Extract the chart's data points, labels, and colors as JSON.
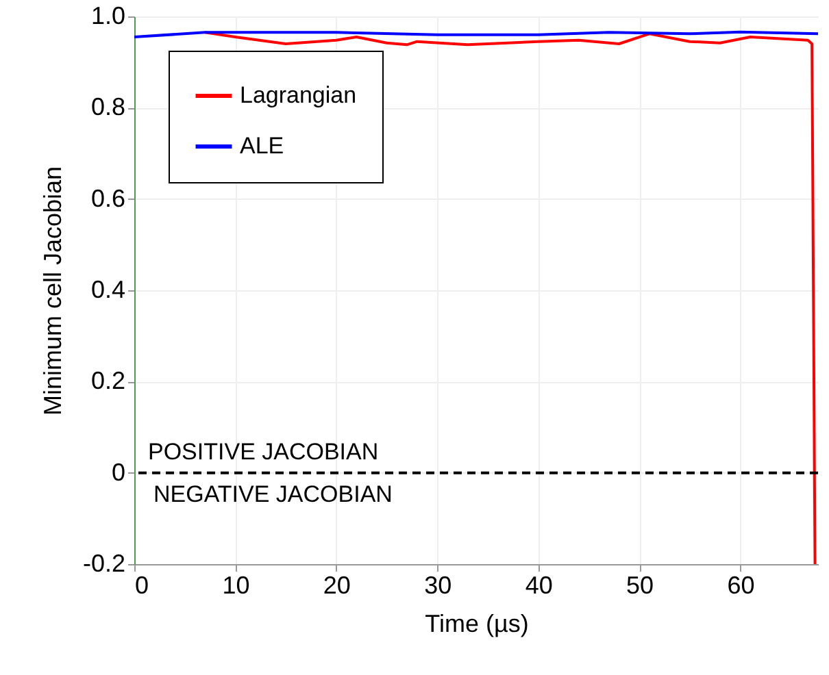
{
  "chart_data": {
    "type": "line",
    "xlabel": "Time (µs)",
    "ylabel": "Minimum cell Jacobian",
    "xlim": [
      0,
      67.7
    ],
    "xticks": [
      0,
      10,
      20,
      30,
      40,
      50,
      60
    ],
    "ylim": [
      -0.2,
      1.0
    ],
    "yticks": [
      {
        "value": -0.2,
        "label": "-0.2"
      },
      0,
      0.2,
      0.4,
      0.6,
      0.8,
      {
        "value": 1,
        "label": "1.0"
      }
    ],
    "grid": true,
    "legend": "top left",
    "line_style": "solid",
    "marker": "none",
    "series": [
      {
        "name": "Lagrangian",
        "color": "#ff0000",
        "x": [
          7,
          10,
          15,
          20,
          22,
          25,
          27,
          28,
          33,
          40,
          44,
          48,
          51,
          55,
          58,
          61,
          66.7,
          67.1,
          67.4
        ],
        "values": [
          0.965,
          0.955,
          0.94,
          0.948,
          0.955,
          0.942,
          0.938,
          0.945,
          0.938,
          0.945,
          0.948,
          0.94,
          0.962,
          0.945,
          0.942,
          0.955,
          0.948,
          0.94,
          -0.2
        ]
      },
      {
        "name": "ALE",
        "color": "#0000ff",
        "x": [
          0,
          7,
          20,
          30,
          40,
          47,
          55,
          60,
          67.7
        ],
        "values": [
          0.955,
          0.965,
          0.965,
          0.96,
          0.96,
          0.965,
          0.962,
          0.966,
          0.962
        ]
      }
    ],
    "ref_lines": [
      {
        "axis": "y",
        "value": 0,
        "color": "#000000",
        "line_style": "dashed"
      }
    ],
    "annotations": [
      "POSITIVE JACOBIAN",
      "NEGATIVE JACOBIAN"
    ]
  }
}
